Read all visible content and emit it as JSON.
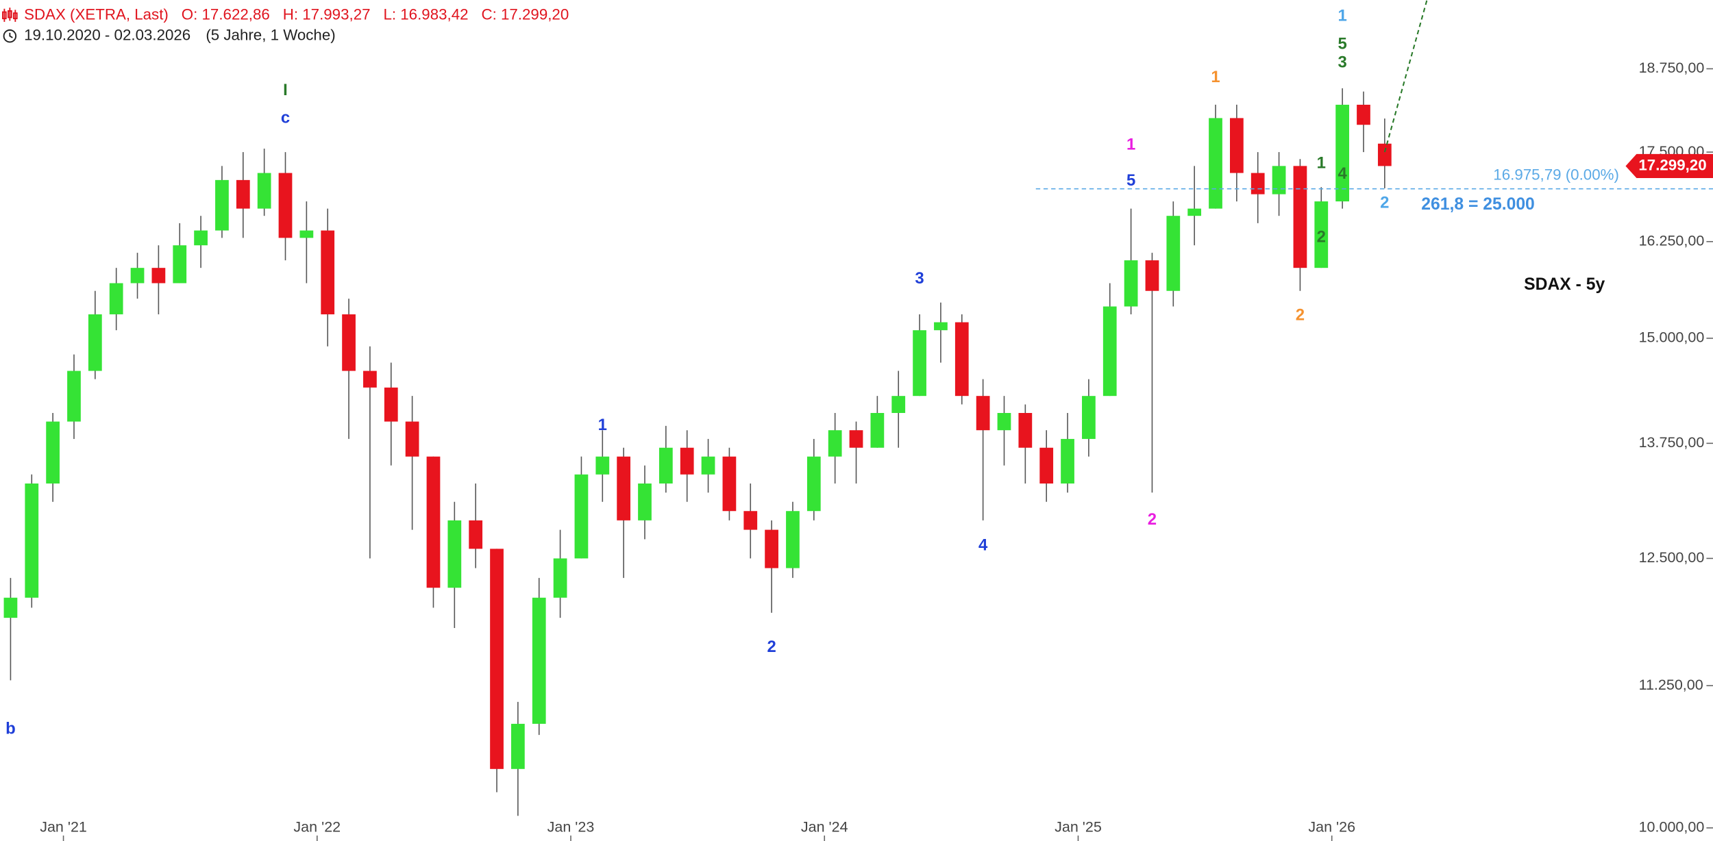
{
  "chart_data": {
    "type": "candlestick",
    "title": "SDAX (XETRA, Last)",
    "ohlc_labels": [
      "O: 17.622,86",
      "H: 17.993,27",
      "L: 16.983,42",
      "C: 17.299,20"
    ],
    "date_range": "19.10.2020 - 02.03.2026",
    "period": "(5 Jahre, 1 Woche)",
    "chart_label": "SDAX - 5y",
    "x": [
      "2020-10",
      "2020-11",
      "2020-12",
      "2021-01",
      "2021-02",
      "2021-03",
      "2021-04",
      "2021-05",
      "2021-06",
      "2021-07",
      "2021-08",
      "2021-09",
      "2021-10",
      "2021-11",
      "2021-12",
      "2022-01",
      "2022-02",
      "2022-03",
      "2022-04",
      "2022-05",
      "2022-06",
      "2022-07",
      "2022-08",
      "2022-09",
      "2022-10",
      "2022-11",
      "2022-12",
      "2023-01",
      "2023-02",
      "2023-03",
      "2023-04",
      "2023-05",
      "2023-06",
      "2023-07",
      "2023-08",
      "2023-09",
      "2023-10",
      "2023-11",
      "2023-12",
      "2024-01",
      "2024-02",
      "2024-03",
      "2024-04",
      "2024-05",
      "2024-06",
      "2024-07",
      "2024-08",
      "2024-09",
      "2024-10",
      "2024-11",
      "2024-12",
      "2025-01",
      "2025-02",
      "2025-03",
      "2025-04",
      "2025-05",
      "2025-06",
      "2025-07",
      "2025-08",
      "2025-09",
      "2025-10",
      "2025-11",
      "2025-12",
      "2026-01",
      "2026-02",
      "2026-03"
    ],
    "open": [
      11900,
      12100,
      13300,
      14000,
      14600,
      15300,
      15700,
      15900,
      15700,
      16200,
      16400,
      17100,
      16700,
      17200,
      16300,
      16400,
      15300,
      14600,
      14400,
      14000,
      13600,
      12200,
      12900,
      12600,
      10500,
      10900,
      12100,
      12500,
      13400,
      13600,
      12900,
      13300,
      13700,
      13400,
      13600,
      13000,
      12800,
      12400,
      13000,
      13600,
      13900,
      13700,
      14100,
      14300,
      15100,
      15200,
      14300,
      13900,
      14100,
      13700,
      13300,
      13800,
      14300,
      15400,
      16000,
      15600,
      16600,
      16700,
      18000,
      17200,
      16900,
      17300,
      15900,
      16800,
      18200,
      17622.86
    ],
    "high": [
      12300,
      13400,
      14100,
      14800,
      15600,
      15900,
      16100,
      16200,
      16500,
      16600,
      17300,
      17500,
      17550,
      17500,
      16800,
      16700,
      15500,
      14900,
      14700,
      14300,
      13600,
      13100,
      13300,
      12600,
      11100,
      12300,
      12800,
      13600,
      13900,
      13700,
      13500,
      13950,
      13900,
      13800,
      13700,
      13300,
      12900,
      13100,
      13800,
      14100,
      14000,
      14300,
      14600,
      15300,
      15450,
      15300,
      14500,
      14300,
      14200,
      13900,
      14100,
      14500,
      15700,
      16700,
      16100,
      16800,
      17300,
      18200,
      18200,
      17500,
      17500,
      17400,
      17000,
      18450,
      18400,
      17993.27
    ],
    "low": [
      11300,
      12000,
      13100,
      13800,
      14500,
      15100,
      15500,
      15300,
      15700,
      15900,
      16300,
      16300,
      16600,
      16000,
      15700,
      14900,
      13800,
      12500,
      13500,
      12800,
      12000,
      11800,
      12400,
      10300,
      10100,
      10800,
      11900,
      12500,
      13100,
      12300,
      12700,
      13200,
      13100,
      13200,
      12900,
      12500,
      11950,
      12300,
      12900,
      13300,
      13300,
      13700,
      13700,
      14300,
      14700,
      14200,
      12900,
      13500,
      13300,
      13100,
      13200,
      13600,
      14300,
      15300,
      13200,
      15400,
      16200,
      16700,
      16800,
      16500,
      16600,
      15600,
      15900,
      16700,
      17500,
      16983.42
    ],
    "close": [
      12100,
      13300,
      14000,
      14600,
      15300,
      15700,
      15900,
      15700,
      16200,
      16400,
      17100,
      16700,
      17200,
      16300,
      16400,
      15300,
      14600,
      14400,
      14000,
      13600,
      12200,
      12900,
      12600,
      10500,
      10900,
      12100,
      12500,
      13400,
      13600,
      12900,
      13300,
      13700,
      13400,
      13600,
      13000,
      12800,
      12400,
      13000,
      13600,
      13900,
      13700,
      14100,
      14300,
      15100,
      15200,
      14300,
      13900,
      14100,
      13700,
      13300,
      13800,
      14300,
      15400,
      16000,
      15600,
      16600,
      16700,
      18000,
      17200,
      16900,
      17300,
      15900,
      16800,
      18200,
      17900,
      17299.2
    ],
    "up_color": "#35e335",
    "down_color": "#e8141e",
    "wick_color": "#555555",
    "log_scale": true,
    "grid": false,
    "ylim": [
      9892,
      19849
    ],
    "yticks": [
      {
        "value": 10000,
        "label": "10.000,00"
      },
      {
        "value": 11250,
        "label": "11.250,00"
      },
      {
        "value": 12500,
        "label": "12.500,00"
      },
      {
        "value": 13750,
        "label": "13.750,00"
      },
      {
        "value": 15000,
        "label": "15.000,00"
      },
      {
        "value": 16250,
        "label": "16.250,00"
      },
      {
        "value": 17500,
        "label": "17.500,00"
      },
      {
        "value": 18750,
        "label": "18.750,00"
      }
    ],
    "xlim": [
      "2020-10",
      "2027-03"
    ],
    "xticks": [
      {
        "value": "2021-01",
        "label": "Jan '21"
      },
      {
        "value": "2022-01",
        "label": "Jan '22"
      },
      {
        "value": "2023-01",
        "label": "Jan '23"
      },
      {
        "value": "2024-01",
        "label": "Jan '24"
      },
      {
        "value": "2025-01",
        "label": "Jan '25"
      },
      {
        "value": "2026-01",
        "label": "Jan '26"
      }
    ],
    "annotations": [
      {
        "text": "b",
        "x": "2020-10",
        "y": 10850,
        "color": "#1f3fd8"
      },
      {
        "text": "I",
        "x": "2021-11",
        "y": 18410,
        "color": "#2a7a2a"
      },
      {
        "text": "c",
        "x": "2021-11",
        "y": 17990,
        "color": "#1f3fd8"
      },
      {
        "text": "1",
        "x": "2023-02",
        "y": 13950,
        "color": "#1f3fd8"
      },
      {
        "text": "2",
        "x": "2023-10",
        "y": 11610,
        "color": "#1f3fd8"
      },
      {
        "text": "3",
        "x": "2024-05",
        "y": 15750,
        "color": "#1f3fd8"
      },
      {
        "text": "4",
        "x": "2024-08",
        "y": 12630,
        "color": "#1f3fd8"
      },
      {
        "text": "5",
        "x": "2025-03",
        "y": 17080,
        "color": "#1f3fd8"
      },
      {
        "text": "1",
        "x": "2025-03",
        "y": 17600,
        "color": "#e91ee0"
      },
      {
        "text": "2",
        "x": "2025-04",
        "y": 12900,
        "color": "#e91ee0"
      },
      {
        "text": "1",
        "x": "2025-07",
        "y": 18610,
        "color": "#f5922f"
      },
      {
        "text": "2",
        "x": "2025-11",
        "y": 15280,
        "color": "#f5922f"
      },
      {
        "text": "1",
        "x": "2025-12",
        "y": 17330,
        "color": "#2a7a2a"
      },
      {
        "text": "2",
        "x": "2025-12",
        "y": 16300,
        "color": "#2a7a2a"
      },
      {
        "text": "3",
        "x": "2026-01",
        "y": 18840,
        "color": "#2a7a2a"
      },
      {
        "text": "4",
        "x": "2026-01",
        "y": 17180,
        "color": "#2a7a2a"
      },
      {
        "text": "5",
        "x": "2026-01",
        "y": 19130,
        "color": "#2a7a2a"
      },
      {
        "text": "1",
        "x": "2026-01",
        "y": 19580,
        "color": "#4ea6e8"
      },
      {
        "text": "2",
        "x": "2026-03",
        "y": 16770,
        "color": "#4ea6e8"
      }
    ],
    "level": {
      "value": 16975.79,
      "label": "16.975,79 (0.00%)",
      "x": "2024-11",
      "color": "#5aa9e6"
    },
    "target_label": "261,8 = 25.000",
    "last_price": {
      "value": 17299.2,
      "label": "17.299,20",
      "color": "#e8141e"
    },
    "projection": {
      "x": [
        "2026-03",
        "2026-05"
      ],
      "y": [
        17500,
        19849
      ],
      "color": "#2a7a2a"
    }
  }
}
